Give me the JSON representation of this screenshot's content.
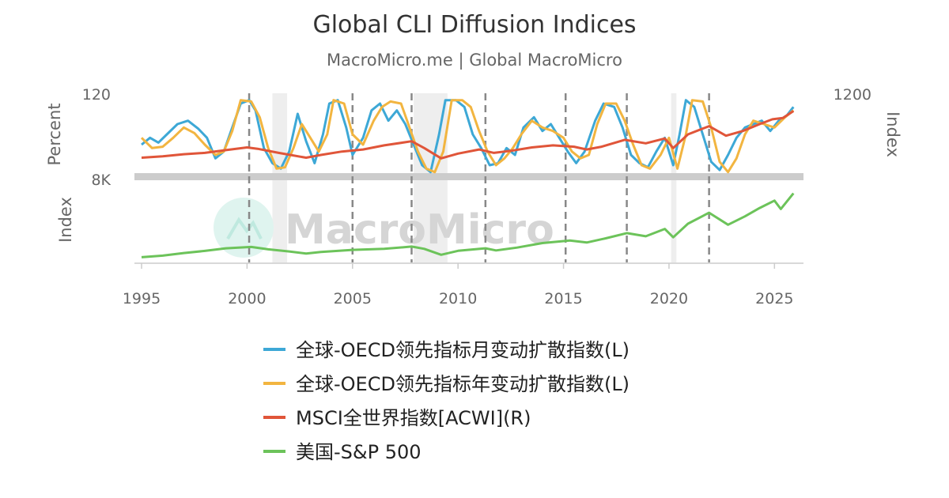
{
  "title": "Global CLI Diffusion Indices",
  "subtitle": "MacroMicro.me | Global MacroMicro",
  "watermark": "MacroMicro",
  "chart_data": {
    "type": "line",
    "panels": [
      {
        "name": "upper",
        "y_left": {
          "label": "Percent",
          "ticks": [
            "120"
          ],
          "range": [
            0,
            120
          ]
        },
        "y_right": {
          "label": "Index",
          "ticks": [
            "1200"
          ],
          "range": [
            0,
            1200
          ]
        }
      },
      {
        "name": "lower",
        "y_left": {
          "label": "Index",
          "ticks": [
            "8K"
          ],
          "range": [
            0,
            8000
          ]
        }
      }
    ],
    "x_ticks": [
      "1995",
      "2000",
      "2005",
      "2010",
      "2015",
      "2020",
      "2025"
    ],
    "x_range": [
      1995,
      2026
    ],
    "recession_shading": [
      [
        2001.2,
        2001.9
      ],
      [
        2007.9,
        2009.5
      ],
      [
        2020.1,
        2020.35
      ]
    ],
    "dashed_markers": [
      2000.1,
      2005.0,
      2007.8,
      2011.3,
      2015.1,
      2018.0,
      2021.9
    ],
    "series": [
      {
        "name": "全球-OECD领先指标月变动扩散指数(L)",
        "color": "#3da8d6",
        "panel": "upper",
        "axis": "left",
        "points": [
          [
            1995.0,
            45
          ],
          [
            1995.4,
            55
          ],
          [
            1995.8,
            48
          ],
          [
            1996.2,
            60
          ],
          [
            1996.7,
            75
          ],
          [
            1997.2,
            80
          ],
          [
            1997.7,
            68
          ],
          [
            1998.1,
            55
          ],
          [
            1998.5,
            25
          ],
          [
            1998.9,
            35
          ],
          [
            1999.3,
            70
          ],
          [
            1999.7,
            105
          ],
          [
            2000.1,
            110
          ],
          [
            2000.4,
            95
          ],
          [
            2000.8,
            40
          ],
          [
            2001.2,
            18
          ],
          [
            2001.6,
            10
          ],
          [
            2002.0,
            35
          ],
          [
            2002.4,
            90
          ],
          [
            2002.8,
            50
          ],
          [
            2003.2,
            18
          ],
          [
            2003.6,
            60
          ],
          [
            2003.9,
            105
          ],
          [
            2004.3,
            110
          ],
          [
            2004.7,
            70
          ],
          [
            2005.0,
            30
          ],
          [
            2005.5,
            55
          ],
          [
            2005.9,
            95
          ],
          [
            2006.3,
            105
          ],
          [
            2006.7,
            80
          ],
          [
            2007.1,
            95
          ],
          [
            2007.5,
            75
          ],
          [
            2007.9,
            45
          ],
          [
            2008.3,
            15
          ],
          [
            2008.7,
            5
          ],
          [
            2009.1,
            60
          ],
          [
            2009.4,
            110
          ],
          [
            2009.9,
            110
          ],
          [
            2010.3,
            100
          ],
          [
            2010.7,
            60
          ],
          [
            2011.1,
            40
          ],
          [
            2011.5,
            15
          ],
          [
            2011.9,
            18
          ],
          [
            2012.3,
            40
          ],
          [
            2012.7,
            30
          ],
          [
            2013.1,
            70
          ],
          [
            2013.6,
            85
          ],
          [
            2014.0,
            65
          ],
          [
            2014.4,
            75
          ],
          [
            2014.8,
            55
          ],
          [
            2015.2,
            35
          ],
          [
            2015.6,
            18
          ],
          [
            2016.0,
            35
          ],
          [
            2016.5,
            80
          ],
          [
            2016.9,
            105
          ],
          [
            2017.4,
            100
          ],
          [
            2017.8,
            70
          ],
          [
            2018.2,
            30
          ],
          [
            2018.6,
            18
          ],
          [
            2019.0,
            12
          ],
          [
            2019.4,
            35
          ],
          [
            2019.8,
            55
          ],
          [
            2020.2,
            15
          ],
          [
            2020.5,
            60
          ],
          [
            2020.8,
            110
          ],
          [
            2021.2,
            100
          ],
          [
            2021.6,
            60
          ],
          [
            2022.0,
            20
          ],
          [
            2022.4,
            8
          ],
          [
            2022.8,
            30
          ],
          [
            2023.2,
            55
          ],
          [
            2023.6,
            70
          ],
          [
            2024.0,
            75
          ],
          [
            2024.4,
            80
          ],
          [
            2024.8,
            65
          ],
          [
            2025.2,
            80
          ],
          [
            2025.6,
            88
          ],
          [
            2025.9,
            100
          ]
        ]
      },
      {
        "name": "全球-OECD领先指标年变动扩散指数(L)",
        "color": "#f2b540",
        "panel": "upper",
        "axis": "left",
        "points": [
          [
            1995.0,
            55
          ],
          [
            1995.5,
            40
          ],
          [
            1996.0,
            42
          ],
          [
            1996.5,
            55
          ],
          [
            1997.0,
            70
          ],
          [
            1997.5,
            62
          ],
          [
            1998.0,
            45
          ],
          [
            1998.5,
            30
          ],
          [
            1998.9,
            35
          ],
          [
            1999.3,
            65
          ],
          [
            1999.7,
            110
          ],
          [
            2000.2,
            108
          ],
          [
            2000.6,
            85
          ],
          [
            2001.0,
            40
          ],
          [
            2001.4,
            10
          ],
          [
            2001.8,
            12
          ],
          [
            2002.2,
            40
          ],
          [
            2002.6,
            75
          ],
          [
            2003.0,
            55
          ],
          [
            2003.4,
            35
          ],
          [
            2003.8,
            60
          ],
          [
            2004.1,
            110
          ],
          [
            2004.6,
            105
          ],
          [
            2005.0,
            60
          ],
          [
            2005.5,
            45
          ],
          [
            2006.0,
            80
          ],
          [
            2006.4,
            100
          ],
          [
            2006.8,
            108
          ],
          [
            2007.3,
            105
          ],
          [
            2007.7,
            70
          ],
          [
            2008.1,
            35
          ],
          [
            2008.5,
            10
          ],
          [
            2008.9,
            5
          ],
          [
            2009.3,
            35
          ],
          [
            2009.7,
            110
          ],
          [
            2010.2,
            110
          ],
          [
            2010.6,
            100
          ],
          [
            2011.0,
            65
          ],
          [
            2011.4,
            35
          ],
          [
            2011.8,
            15
          ],
          [
            2012.2,
            25
          ],
          [
            2012.6,
            40
          ],
          [
            2013.0,
            60
          ],
          [
            2013.5,
            80
          ],
          [
            2014.0,
            70
          ],
          [
            2014.5,
            65
          ],
          [
            2015.0,
            55
          ],
          [
            2015.4,
            35
          ],
          [
            2015.8,
            25
          ],
          [
            2016.2,
            30
          ],
          [
            2016.6,
            75
          ],
          [
            2017.0,
            105
          ],
          [
            2017.5,
            105
          ],
          [
            2017.9,
            80
          ],
          [
            2018.3,
            45
          ],
          [
            2018.7,
            15
          ],
          [
            2019.1,
            10
          ],
          [
            2019.6,
            30
          ],
          [
            2020.0,
            55
          ],
          [
            2020.4,
            10
          ],
          [
            2020.8,
            60
          ],
          [
            2021.1,
            110
          ],
          [
            2021.6,
            108
          ],
          [
            2022.0,
            70
          ],
          [
            2022.4,
            20
          ],
          [
            2022.8,
            5
          ],
          [
            2023.2,
            25
          ],
          [
            2023.6,
            60
          ],
          [
            2024.0,
            80
          ],
          [
            2024.5,
            75
          ],
          [
            2025.0,
            70
          ],
          [
            2025.5,
            85
          ],
          [
            2025.9,
            95
          ]
        ]
      },
      {
        "name": "MSCI全世界指数[ACWI](R)",
        "color": "#e05539",
        "panel": "upper",
        "axis": "right",
        "points": [
          [
            1995.0,
            260
          ],
          [
            1996.0,
            280
          ],
          [
            1997.0,
            310
          ],
          [
            1998.0,
            330
          ],
          [
            1999.0,
            370
          ],
          [
            2000.0,
            410
          ],
          [
            2000.5,
            390
          ],
          [
            2001.5,
            330
          ],
          [
            2002.8,
            260
          ],
          [
            2003.5,
            300
          ],
          [
            2004.5,
            350
          ],
          [
            2005.5,
            380
          ],
          [
            2006.5,
            440
          ],
          [
            2007.8,
            500
          ],
          [
            2008.4,
            400
          ],
          [
            2009.2,
            250
          ],
          [
            2010.0,
            320
          ],
          [
            2011.0,
            380
          ],
          [
            2011.7,
            330
          ],
          [
            2012.5,
            360
          ],
          [
            2013.5,
            410
          ],
          [
            2014.5,
            440
          ],
          [
            2015.5,
            420
          ],
          [
            2016.1,
            380
          ],
          [
            2016.8,
            420
          ],
          [
            2017.9,
            520
          ],
          [
            2018.9,
            470
          ],
          [
            2019.8,
            540
          ],
          [
            2020.2,
            400
          ],
          [
            2020.9,
            600
          ],
          [
            2021.9,
            720
          ],
          [
            2022.7,
            580
          ],
          [
            2023.5,
            650
          ],
          [
            2024.3,
            750
          ],
          [
            2024.9,
            820
          ],
          [
            2025.4,
            840
          ],
          [
            2025.9,
            940
          ]
        ]
      },
      {
        "name": "美国-S&P 500",
        "color": "#6cc35a",
        "panel": "lower",
        "axis": "left",
        "points": [
          [
            1995.0,
            500
          ],
          [
            1996.0,
            650
          ],
          [
            1997.0,
            900
          ],
          [
            1998.0,
            1100
          ],
          [
            1999.0,
            1350
          ],
          [
            2000.2,
            1480
          ],
          [
            2001.0,
            1250
          ],
          [
            2002.0,
            1050
          ],
          [
            2002.8,
            850
          ],
          [
            2003.5,
            1000
          ],
          [
            2005.0,
            1200
          ],
          [
            2006.5,
            1300
          ],
          [
            2007.8,
            1520
          ],
          [
            2008.4,
            1300
          ],
          [
            2009.2,
            730
          ],
          [
            2010.0,
            1110
          ],
          [
            2011.3,
            1350
          ],
          [
            2011.8,
            1150
          ],
          [
            2012.8,
            1420
          ],
          [
            2014.0,
            1850
          ],
          [
            2015.3,
            2100
          ],
          [
            2016.1,
            1900
          ],
          [
            2017.0,
            2300
          ],
          [
            2018.0,
            2800
          ],
          [
            2018.9,
            2500
          ],
          [
            2019.8,
            3200
          ],
          [
            2020.2,
            2400
          ],
          [
            2020.9,
            3700
          ],
          [
            2021.9,
            4750
          ],
          [
            2022.8,
            3600
          ],
          [
            2023.6,
            4400
          ],
          [
            2024.3,
            5200
          ],
          [
            2025.0,
            5900
          ],
          [
            2025.3,
            5100
          ],
          [
            2025.9,
            6600
          ]
        ]
      }
    ],
    "legend": {
      "position": "bottom"
    },
    "grid": false
  }
}
